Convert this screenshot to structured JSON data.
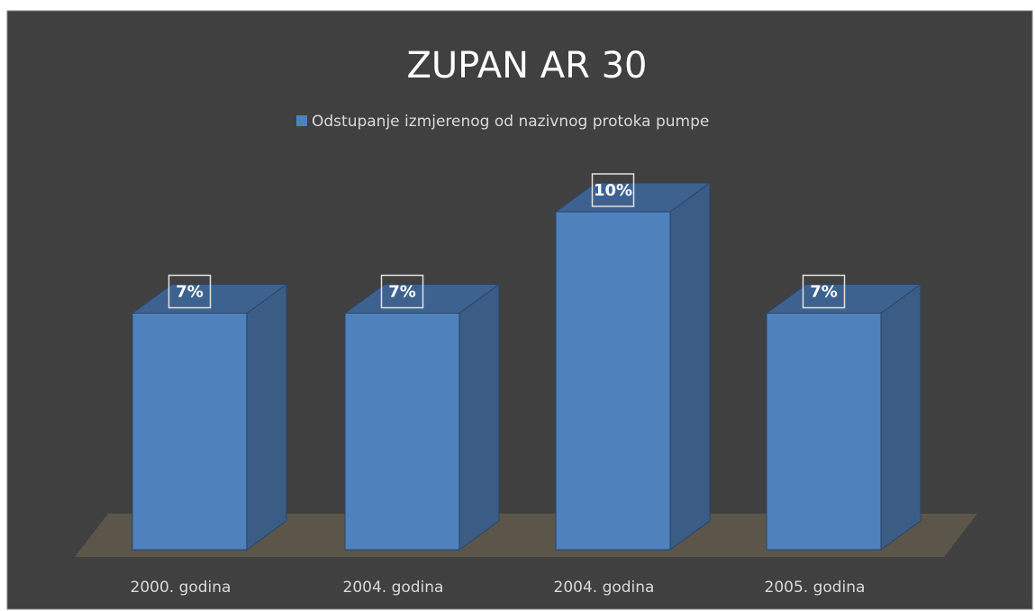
{
  "chart_data": {
    "type": "bar3d",
    "title": "ZUPAN AR 30",
    "categories": [
      "2000. godina",
      "2004. godina",
      "2004. godina",
      "2005. godina"
    ],
    "series": [
      {
        "name": "Odstupanje izmjerenog od nazivnog protoka pumpe",
        "color": "#4f81bd",
        "values": [
          7,
          7,
          10,
          7
        ],
        "value_labels": [
          "7%",
          "7%",
          "10%",
          "7%"
        ]
      }
    ],
    "legend": "top"
  }
}
